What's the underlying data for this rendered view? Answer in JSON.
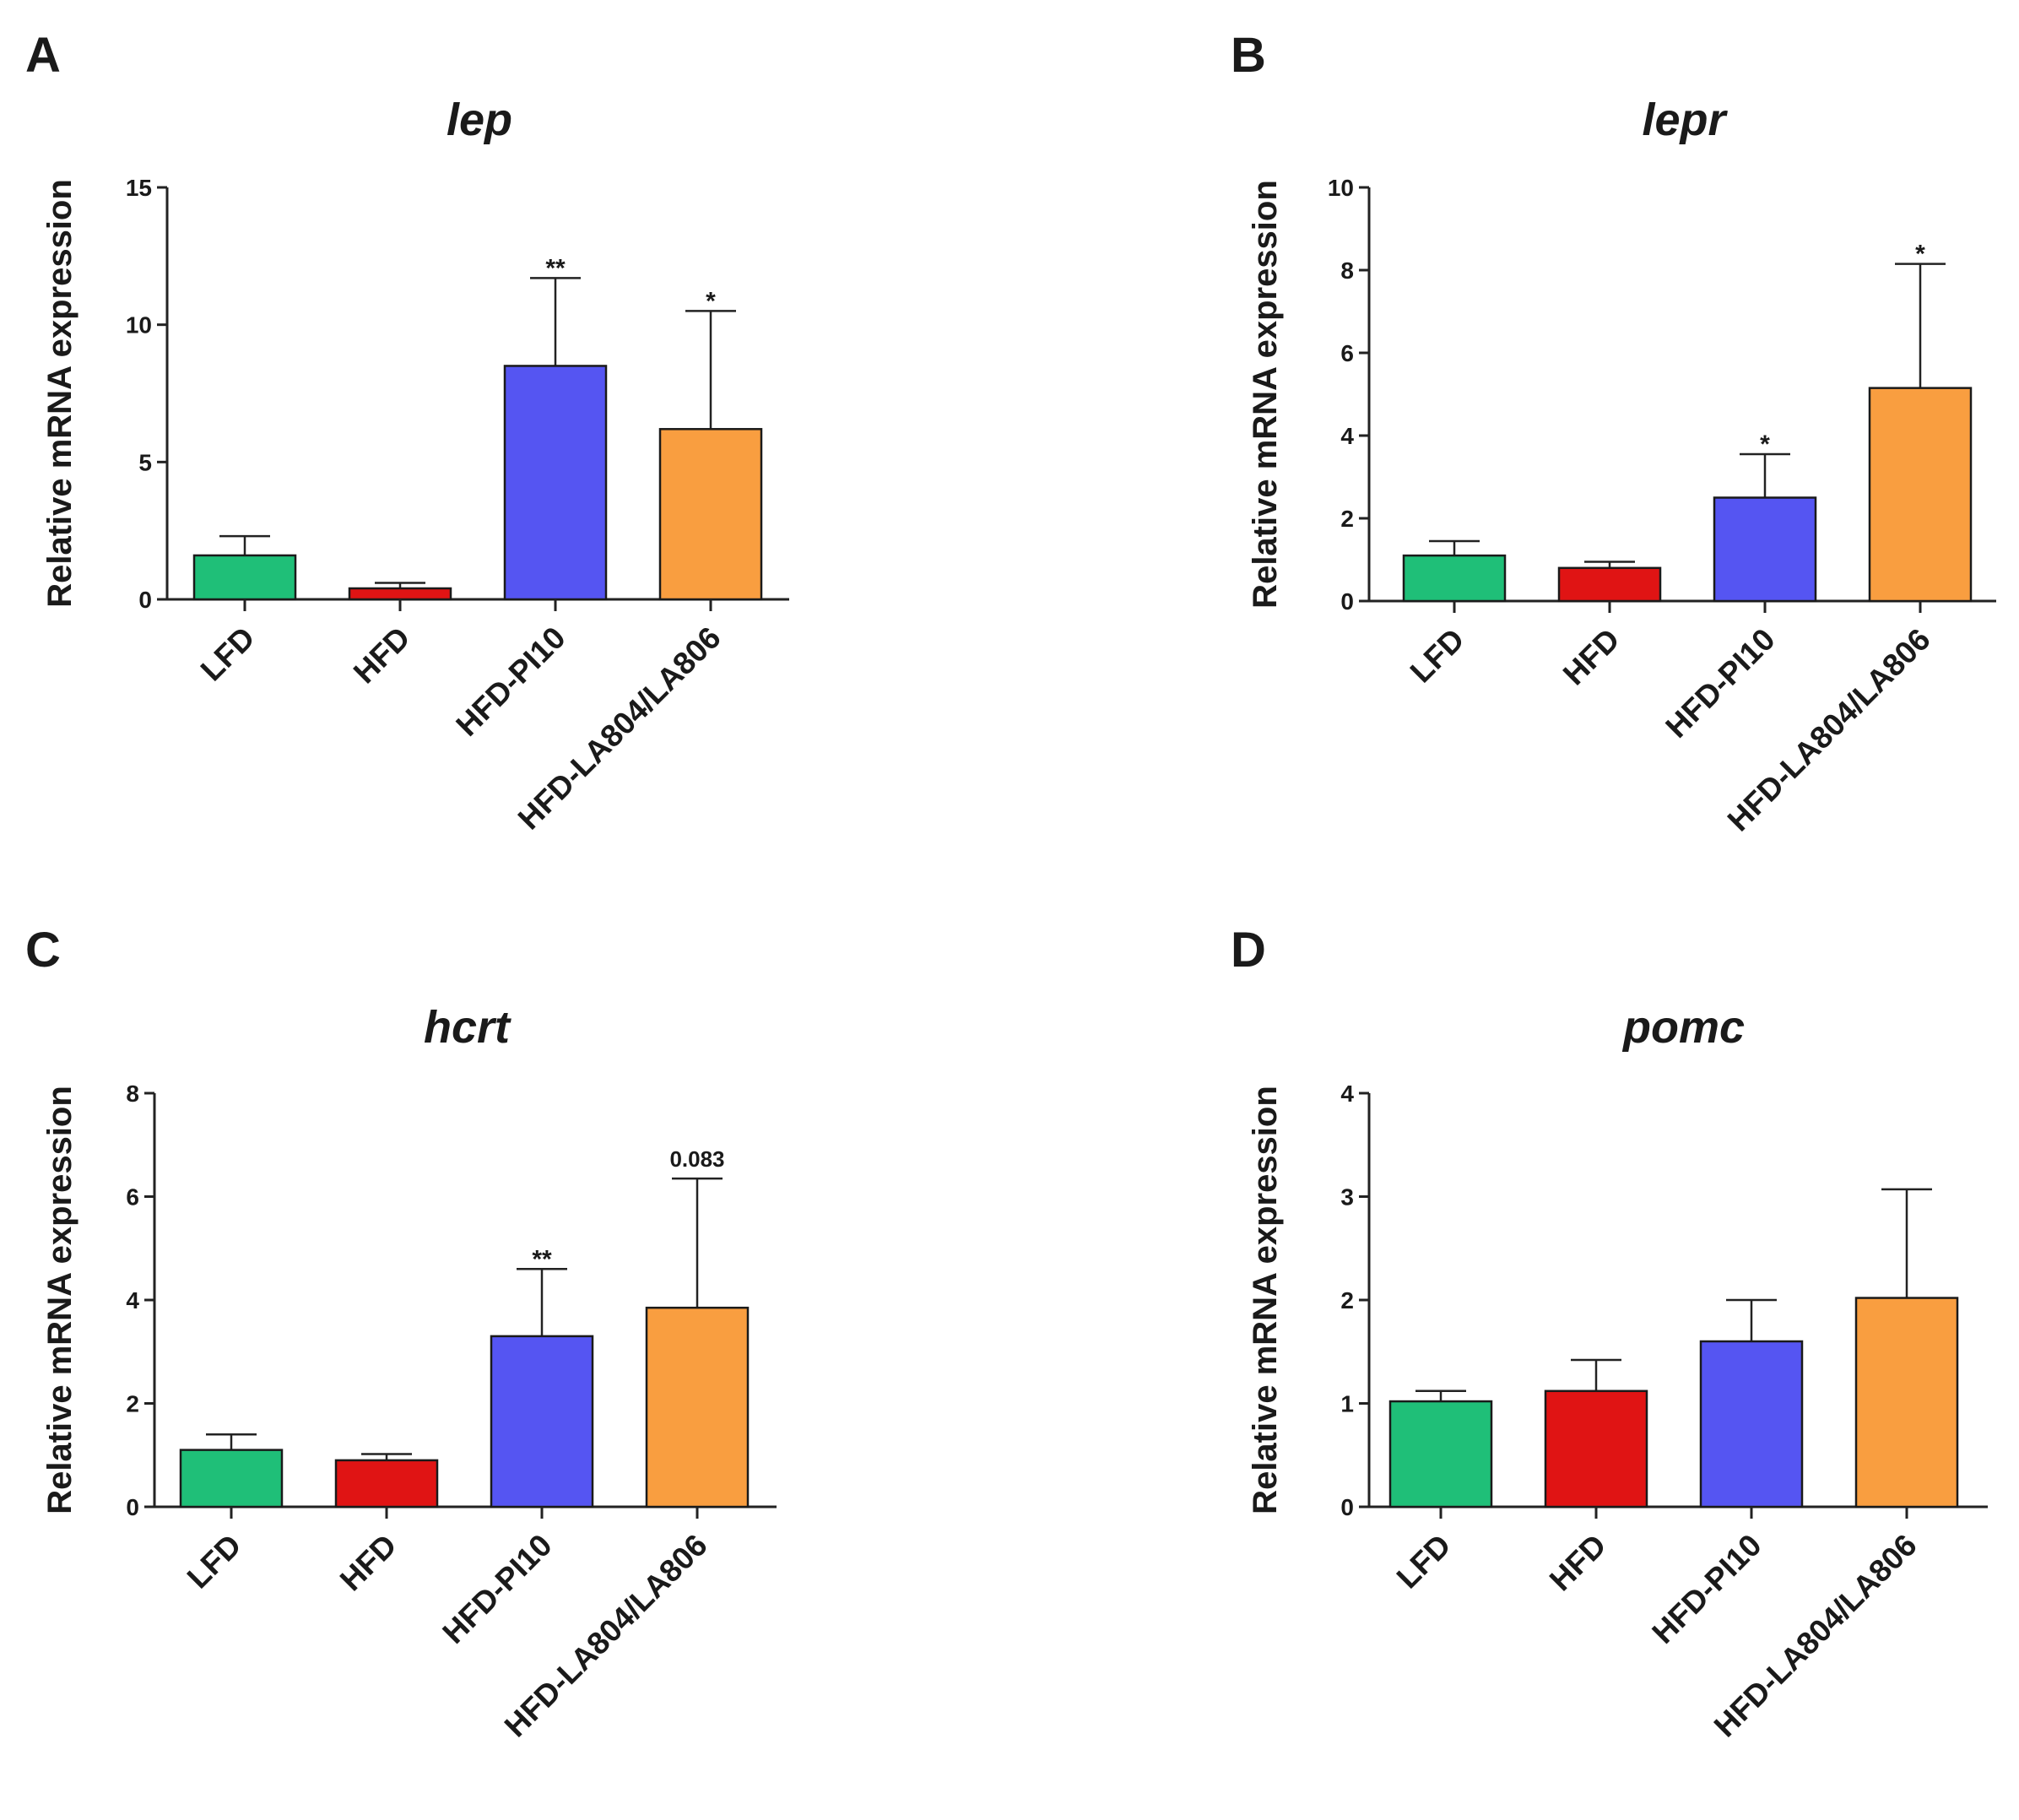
{
  "figure": {
    "panels": [
      "A",
      "B",
      "C",
      "D"
    ]
  },
  "chart_data": [
    {
      "panel": "A",
      "type": "bar",
      "title": "lep",
      "xlabel": "",
      "ylabel": "Relative mRNA expression",
      "ylim": [
        0,
        15
      ],
      "yticks": [
        0,
        5,
        10,
        15
      ],
      "categories": [
        "LFD",
        "HFD",
        "HFD-PI10",
        "HFD-LA804/LA806"
      ],
      "values": [
        1.6,
        0.4,
        8.5,
        6.2
      ],
      "errors": [
        0.7,
        0.2,
        3.2,
        4.3
      ],
      "significance": [
        "",
        "",
        "**",
        "*"
      ],
      "colors": [
        "#1fbf78",
        "#e01414",
        "#5555f2",
        "#f99e40"
      ]
    },
    {
      "panel": "B",
      "type": "bar",
      "title": "lepr",
      "xlabel": "",
      "ylabel": "Relative mRNA expression",
      "ylim": [
        0,
        10
      ],
      "yticks": [
        0,
        2,
        4,
        6,
        8,
        10
      ],
      "categories": [
        "LFD",
        "HFD",
        "HFD-PI10",
        "HFD-LA804/LA806"
      ],
      "values": [
        1.1,
        0.8,
        2.5,
        5.15
      ],
      "errors": [
        0.35,
        0.15,
        1.05,
        3.0
      ],
      "significance": [
        "",
        "",
        "*",
        "*"
      ],
      "colors": [
        "#1fbf78",
        "#e01414",
        "#5555f2",
        "#f99e40"
      ]
    },
    {
      "panel": "C",
      "type": "bar",
      "title": "hcrt",
      "xlabel": "",
      "ylabel": "Relative mRNA expression",
      "ylim": [
        0,
        8
      ],
      "yticks": [
        0,
        2,
        4,
        6,
        8
      ],
      "categories": [
        "LFD",
        "HFD",
        "HFD-PI10",
        "HFD-LA804/LA806"
      ],
      "values": [
        1.1,
        0.9,
        3.3,
        3.85
      ],
      "errors": [
        0.3,
        0.12,
        1.3,
        2.5
      ],
      "significance": [
        "",
        "",
        "**",
        "0.083"
      ],
      "colors": [
        "#1fbf78",
        "#e01414",
        "#5555f2",
        "#f99e40"
      ]
    },
    {
      "panel": "D",
      "type": "bar",
      "title": "pomc",
      "xlabel": "",
      "ylabel": "Relative mRNA expression",
      "ylim": [
        0,
        4
      ],
      "yticks": [
        0,
        1,
        2,
        3,
        4
      ],
      "categories": [
        "LFD",
        "HFD",
        "HFD-PI10",
        "HFD-LA804/LA806"
      ],
      "values": [
        1.02,
        1.12,
        1.6,
        2.02
      ],
      "errors": [
        0.1,
        0.3,
        0.4,
        1.05
      ],
      "significance": [
        "",
        "",
        "",
        ""
      ],
      "colors": [
        "#1fbf78",
        "#e01414",
        "#5555f2",
        "#f99e40"
      ]
    }
  ]
}
